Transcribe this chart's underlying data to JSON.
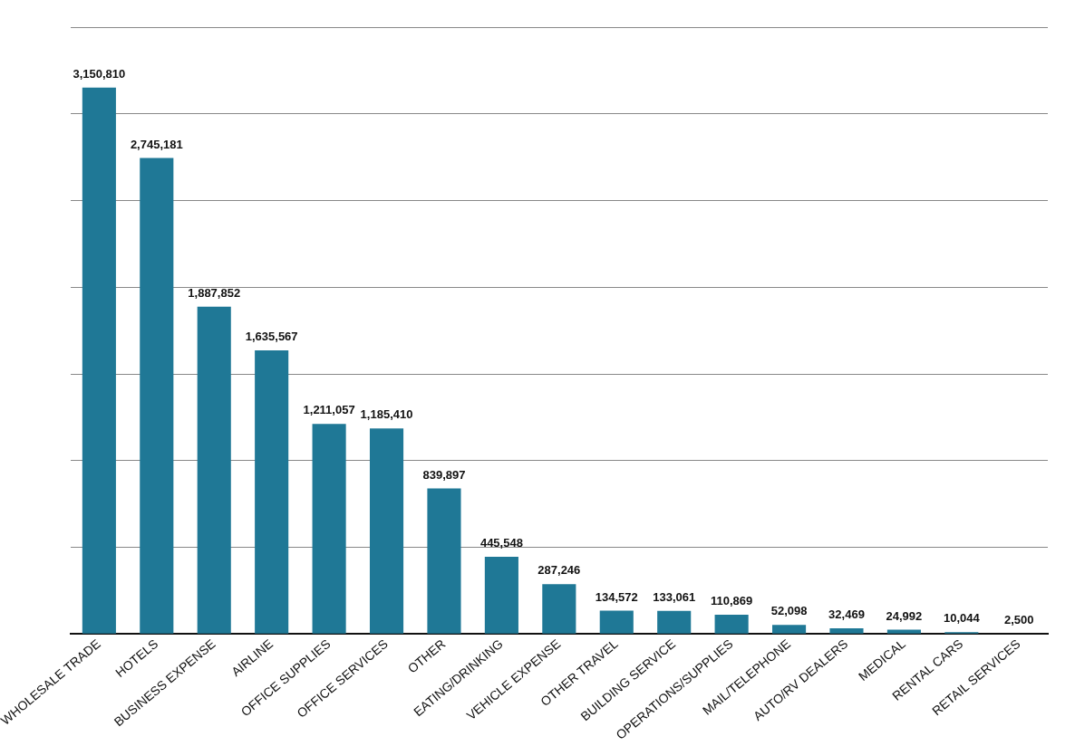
{
  "chart_data": {
    "type": "bar",
    "categories": [
      "WHOLESALE TRADE",
      "HOTELS",
      "BUSINESS EXPENSE",
      "AIRLINE",
      "OFFICE SUPPLIES",
      "OFFICE SERVICES",
      "OTHER",
      "EATING/DRINKING",
      "VEHICLE EXPENSE",
      "OTHER TRAVEL",
      "BUILDING SERVICE",
      "OPERATIONS/SUPPLIES",
      "MAIL/TELEPHONE",
      "AUTO/RV DEALERS",
      "MEDICAL",
      "RENTAL CARS",
      "RETAIL SERVICES"
    ],
    "values": [
      3150810,
      2745181,
      1887852,
      1635567,
      1211057,
      1185410,
      839897,
      445548,
      287246,
      134572,
      133061,
      110869,
      52098,
      32469,
      24992,
      10044,
      2500
    ],
    "value_labels": [
      "3,150,810",
      "2,745,181",
      "1,887,852",
      "1,635,567",
      "1,211,057",
      "1,185,410",
      "839,897",
      "445,548",
      "287,246",
      "134,572",
      "133,061",
      "110,869",
      "52,098",
      "32,469",
      "24,992",
      "10,044",
      "2,500"
    ],
    "color": "#1f7896",
    "grid": "y",
    "tick_labels": "x"
  }
}
